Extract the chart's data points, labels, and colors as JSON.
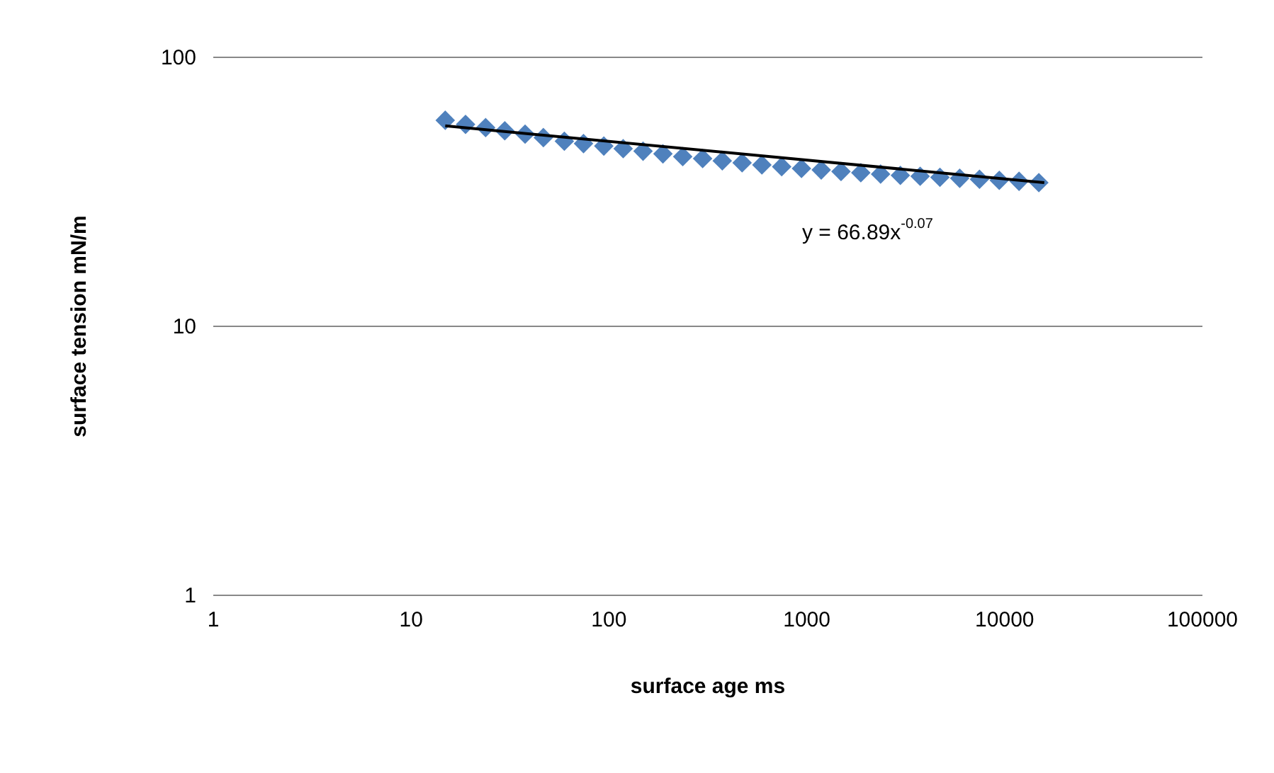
{
  "chart_data": {
    "type": "scatter",
    "xlabel": "surface age ms",
    "ylabel": "surface tension mN/m",
    "log": "xy",
    "grid": "y",
    "marker": "diamond",
    "xlim": [
      1,
      100000
    ],
    "xticks": [
      1,
      10,
      100,
      1000,
      10000,
      100000
    ],
    "ylim": [
      1,
      100
    ],
    "yticks": [
      1,
      10,
      100
    ],
    "series": [
      {
        "color": "#4f81bd",
        "x": [
          15,
          19,
          24,
          30,
          38,
          47,
          60,
          75,
          95,
          119,
          150,
          189,
          238,
          300,
          377,
          475,
          598,
          753,
          948,
          1193,
          1502,
          1891,
          2381,
          2997,
          3773,
          4750,
          5980,
          7528,
          9477,
          11931,
          15020
        ],
        "values": [
          58,
          56,
          54.5,
          53,
          51.5,
          50,
          48.5,
          47.5,
          46.5,
          45.5,
          44.5,
          43.5,
          42.5,
          41.8,
          41,
          40.3,
          39.6,
          39,
          38.4,
          37.9,
          37.4,
          37,
          36.6,
          36.2,
          35.9,
          35.6,
          35.3,
          35,
          34.7,
          34.4,
          34
        ]
      },
      {
        "type": "line",
        "color": "#000000",
        "marker": "none",
        "x": [
          15,
          16000
        ],
        "values": [
          55.3,
          34.0
        ]
      }
    ],
    "annotations": [
      "y = 66.89x$^{-0.07}$"
    ]
  }
}
